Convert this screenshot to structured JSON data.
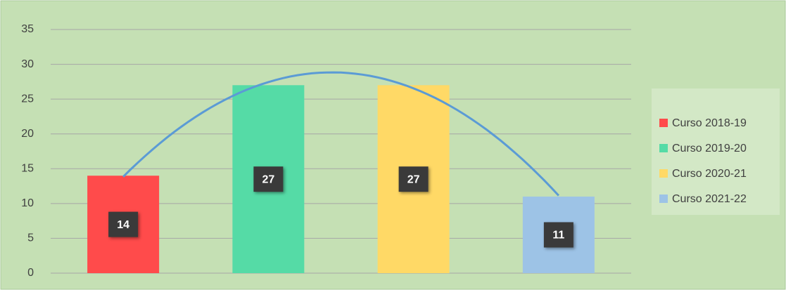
{
  "chart_data": {
    "type": "bar",
    "series": [
      {
        "name": "Curso 2018-19",
        "color": "#ff4b4b",
        "values": [
          14
        ]
      },
      {
        "name": "Curso 2019-20",
        "color": "#55dba6",
        "values": [
          27
        ]
      },
      {
        "name": "Curso 2020-21",
        "color": "#ffd966",
        "values": [
          27
        ]
      },
      {
        "name": "Curso 2021-22",
        "color": "#9dc3e6",
        "values": [
          11
        ]
      }
    ],
    "ylim": [
      0,
      35
    ],
    "yticks": [
      0,
      5,
      10,
      15,
      20,
      25,
      30,
      35
    ],
    "grid": true,
    "legend": "right",
    "trendline": {
      "type": "polynomial",
      "order": 2,
      "color": "#5b9bd5"
    }
  }
}
